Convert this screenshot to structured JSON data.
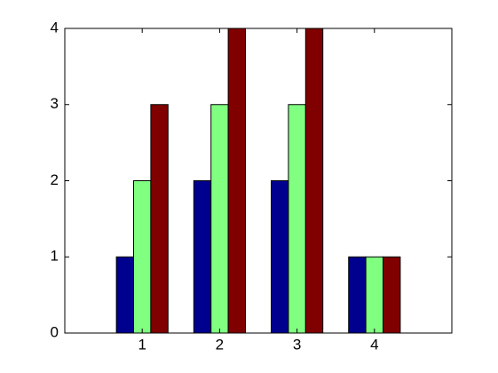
{
  "chart_data": {
    "type": "bar",
    "x": [
      1,
      2,
      3,
      4
    ],
    "series": [
      {
        "color": "#00008f",
        "values": [
          1,
          2,
          2,
          1
        ]
      },
      {
        "color": "#80ff80",
        "values": [
          2,
          3,
          3,
          1
        ]
      },
      {
        "color": "#800000",
        "values": [
          3,
          4,
          4,
          1
        ]
      }
    ],
    "xlim": [
      0,
      5
    ],
    "xticks": [
      1,
      2,
      3,
      4
    ],
    "ylim": [
      0,
      4
    ],
    "yticks": [
      0,
      1,
      2,
      3,
      4
    ],
    "grid": false
  }
}
